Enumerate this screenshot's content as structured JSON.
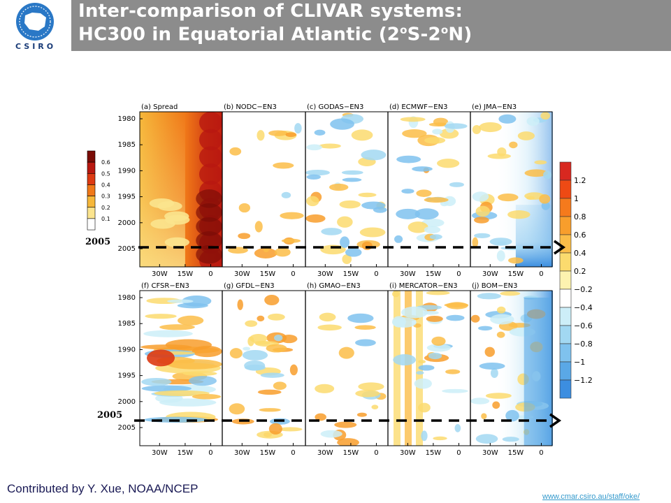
{
  "header": {
    "logo_text": "CSIRO",
    "title_line1": "Inter-comparison of CLIVAR systems:",
    "title_line2_pre": "HC300 in Equatorial Atlantic (2",
    "title_sup1": "o",
    "title_line2_mid": "S-2",
    "title_sup2": "o",
    "title_line2_post": "N)"
  },
  "footer": {
    "credit": "Contributed by Y. Xue, NOAA/NCEP",
    "link": "www.cmar.csiro.au/staff/oke/"
  },
  "annotations": {
    "top_year": "2005",
    "bottom_year": "2005"
  },
  "chart_data": {
    "type": "heatmap",
    "x_ticks": [
      "30W",
      "15W",
      "0"
    ],
    "y_ticks": [
      "1980",
      "1985",
      "1990",
      "1995",
      "2000",
      "2005"
    ],
    "rows": [
      [
        "(a) Spread",
        "(b) NODC−EN3",
        "(c) GODAS−EN3",
        "(d) ECMWF−EN3",
        "(e) JMA−EN3"
      ],
      [
        "(f) CFSR−EN3",
        "(g) GFDL−EN3",
        "(h) GMAO−EN3",
        "(i) MERCATOR−EN3",
        "(j) BOM−EN3"
      ]
    ],
    "spread_colorbar": {
      "levels": [
        "0.1",
        "0.2",
        "0.3",
        "0.4",
        "0.5",
        "0.6"
      ],
      "colors": [
        "#ffffff",
        "#fbe48e",
        "#f6b73a",
        "#f07818",
        "#dd3a12",
        "#b81810",
        "#7a0c06"
      ]
    },
    "diff_colorbar": {
      "levels": [
        "1.2",
        "1",
        "0.8",
        "0.6",
        "0.4",
        "0.2",
        "−0.2",
        "−0.4",
        "−0.6",
        "−0.8",
        "−1",
        "−1.2"
      ],
      "colors": [
        "#d82820",
        "#ee4a14",
        "#f57a1c",
        "#f89e2c",
        "#fbbd48",
        "#fbdb6e",
        "#fdf3b0",
        "#ffffff",
        "#cdeef8",
        "#a2d8f2",
        "#7fc2ee",
        "#5aa8e6",
        "#3c8ee0"
      ]
    }
  }
}
